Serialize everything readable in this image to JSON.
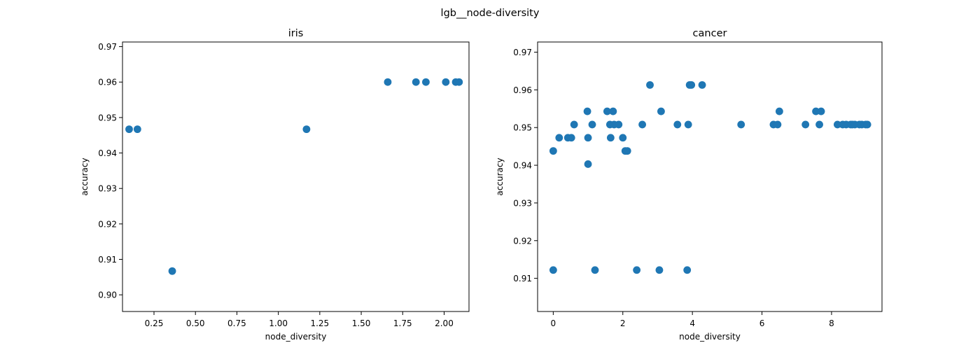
{
  "figure": {
    "title": "lgb__node-diversity"
  },
  "chart_data": [
    {
      "type": "scatter",
      "title": "iris",
      "xlabel": "node_diversity",
      "ylabel": "accuracy",
      "xlim": [
        0.06,
        2.15
      ],
      "ylim": [
        0.8953,
        0.9713
      ],
      "xticks": [
        0.25,
        0.5,
        0.75,
        1.0,
        1.25,
        1.5,
        1.75,
        2.0
      ],
      "xtick_labels": [
        "0.25",
        "0.50",
        "0.75",
        "1.00",
        "1.25",
        "1.50",
        "1.75",
        "2.00"
      ],
      "yticks": [
        0.9,
        0.91,
        0.92,
        0.93,
        0.94,
        0.95,
        0.96,
        0.97
      ],
      "ytick_labels": [
        "0.90",
        "0.91",
        "0.92",
        "0.93",
        "0.94",
        "0.95",
        "0.96",
        "0.97"
      ],
      "color": "#1f77b4",
      "grid": false,
      "points": [
        [
          0.1,
          0.9467
        ],
        [
          0.15,
          0.9467
        ],
        [
          0.36,
          0.9067
        ],
        [
          1.17,
          0.9467
        ],
        [
          1.66,
          0.96
        ],
        [
          1.83,
          0.96
        ],
        [
          1.89,
          0.96
        ],
        [
          2.01,
          0.96
        ],
        [
          2.07,
          0.96
        ],
        [
          2.09,
          0.96
        ]
      ]
    },
    {
      "type": "scatter",
      "title": "cancer",
      "xlabel": "node_diversity",
      "ylabel": "accuracy",
      "xlim": [
        -0.45,
        9.45
      ],
      "ylim": [
        0.9012,
        0.9727
      ],
      "xticks": [
        0,
        2,
        4,
        6,
        8
      ],
      "xtick_labels": [
        "0",
        "2",
        "4",
        "6",
        "8"
      ],
      "yticks": [
        0.91,
        0.92,
        0.93,
        0.94,
        0.95,
        0.96,
        0.97
      ],
      "ytick_labels": [
        "0.91",
        "0.92",
        "0.93",
        "0.94",
        "0.95",
        "0.96",
        "0.97"
      ],
      "color": "#1f77b4",
      "grid": false,
      "points": [
        [
          0.0,
          0.9438
        ],
        [
          0.0,
          0.9122
        ],
        [
          0.17,
          0.9473
        ],
        [
          0.42,
          0.9473
        ],
        [
          0.52,
          0.9473
        ],
        [
          0.6,
          0.9508
        ],
        [
          0.98,
          0.9543
        ],
        [
          1.0,
          0.9473
        ],
        [
          1.0,
          0.9403
        ],
        [
          1.12,
          0.9508
        ],
        [
          1.2,
          0.9122
        ],
        [
          1.55,
          0.9543
        ],
        [
          1.63,
          0.9508
        ],
        [
          1.65,
          0.9473
        ],
        [
          1.72,
          0.9543
        ],
        [
          1.75,
          0.9508
        ],
        [
          1.88,
          0.9508
        ],
        [
          2.0,
          0.9473
        ],
        [
          2.07,
          0.9438
        ],
        [
          2.13,
          0.9438
        ],
        [
          2.4,
          0.9122
        ],
        [
          2.56,
          0.9508
        ],
        [
          2.78,
          0.9613
        ],
        [
          3.05,
          0.9122
        ],
        [
          3.1,
          0.9543
        ],
        [
          3.57,
          0.9508
        ],
        [
          3.85,
          0.9122
        ],
        [
          3.88,
          0.9508
        ],
        [
          3.92,
          0.9613
        ],
        [
          3.97,
          0.9613
        ],
        [
          4.28,
          0.9613
        ],
        [
          5.4,
          0.9508
        ],
        [
          6.33,
          0.9508
        ],
        [
          6.45,
          0.9508
        ],
        [
          6.5,
          0.9543
        ],
        [
          7.25,
          0.9508
        ],
        [
          7.55,
          0.9543
        ],
        [
          7.65,
          0.9508
        ],
        [
          7.7,
          0.9543
        ],
        [
          8.17,
          0.9508
        ],
        [
          8.32,
          0.9508
        ],
        [
          8.42,
          0.9508
        ],
        [
          8.55,
          0.9508
        ],
        [
          8.6,
          0.9508
        ],
        [
          8.67,
          0.9508
        ],
        [
          8.8,
          0.9508
        ],
        [
          8.87,
          0.9508
        ],
        [
          8.98,
          0.9508
        ],
        [
          9.03,
          0.9508
        ]
      ]
    }
  ]
}
